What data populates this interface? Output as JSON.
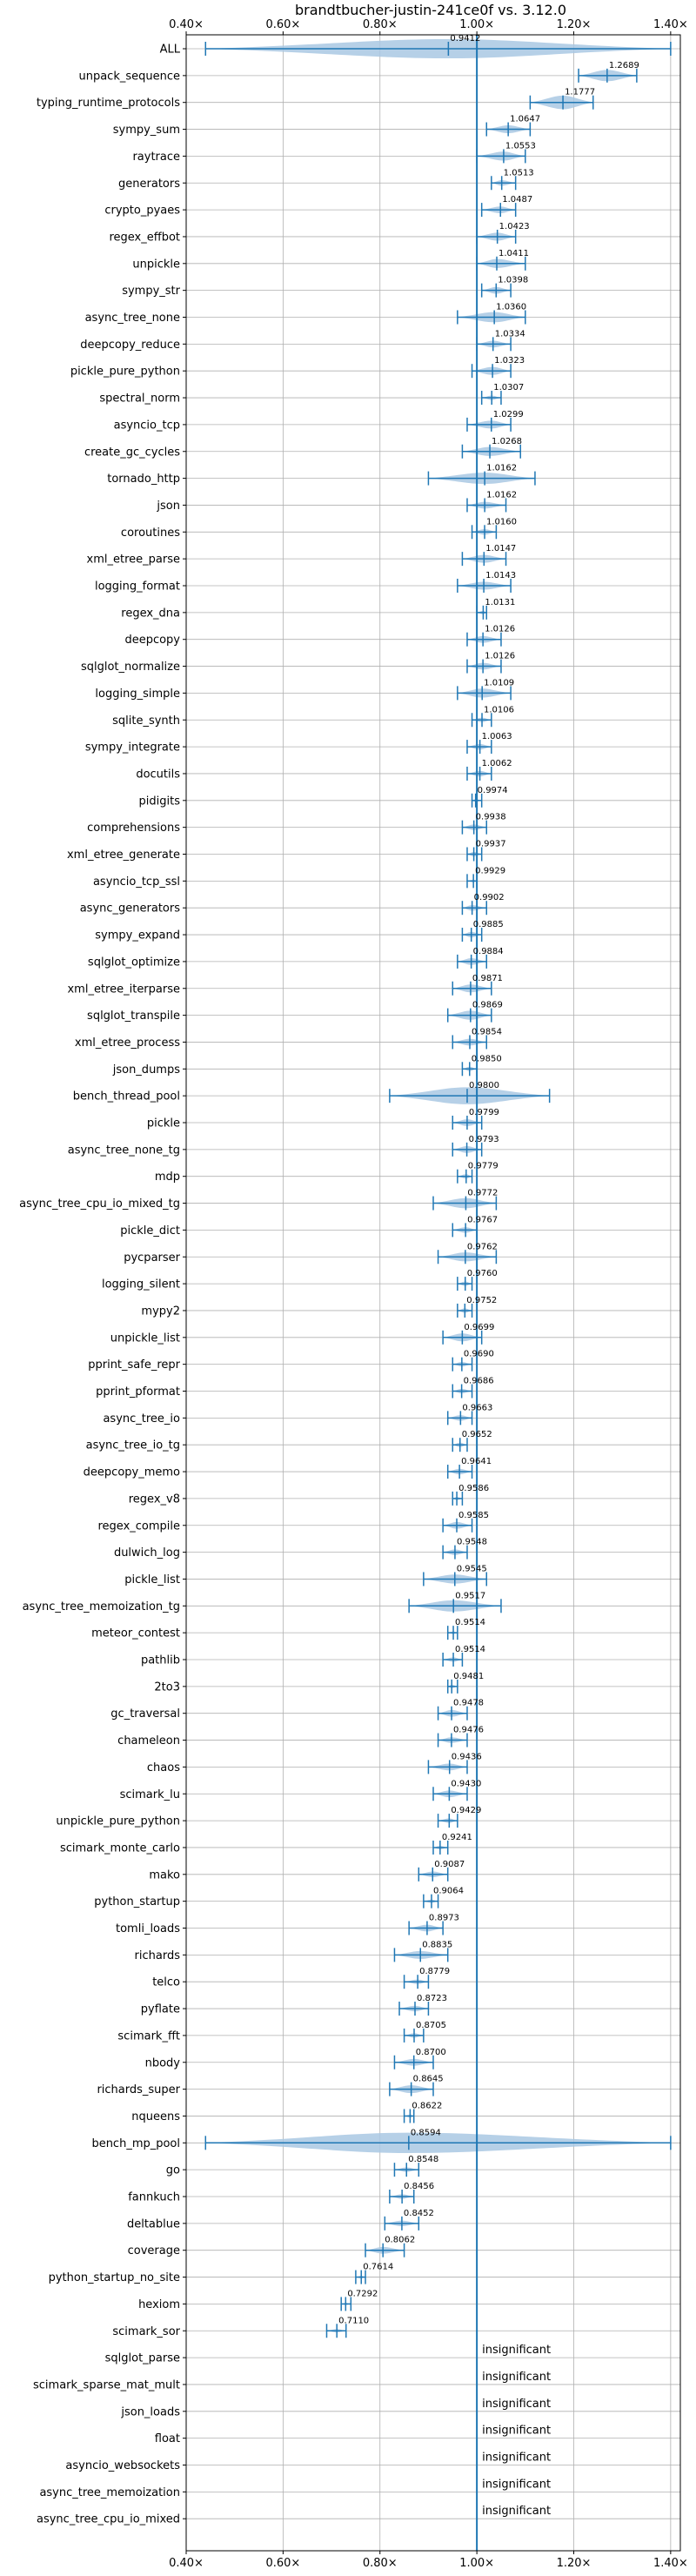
{
  "chart_data": {
    "type": "violin",
    "title": "brandtbucher-justin-241ce0f vs. 3.12.0",
    "xlim": [
      0.4,
      1.42
    ],
    "xticks": [
      0.4,
      0.6,
      0.8,
      1.0,
      1.2,
      1.4
    ],
    "xtick_labels": [
      "0.40×",
      "0.60×",
      "0.80×",
      "1.00×",
      "1.20×",
      "1.40×"
    ],
    "reference_line": 1.0,
    "grid": true,
    "colors": {
      "violin": "#a9c8e3",
      "line": "#1f77b4",
      "grid": "#b0b0b0"
    },
    "insignificant_label": "insignificant",
    "benchmarks": [
      {
        "name": "ALL",
        "value": 0.9412,
        "label": "0.9412",
        "min": 0.44,
        "max": 1.4,
        "width": 0.085
      },
      {
        "name": "unpack_sequence",
        "value": 1.2689,
        "label": "1.2689",
        "min": 1.21,
        "max": 1.33,
        "width": 0.05
      },
      {
        "name": "typing_runtime_protocols",
        "value": 1.1777,
        "label": "1.1777",
        "min": 1.11,
        "max": 1.24,
        "width": 0.06
      },
      {
        "name": "sympy_sum",
        "value": 1.0647,
        "label": "1.0647",
        "min": 1.02,
        "max": 1.11,
        "width": 0.035
      },
      {
        "name": "raytrace",
        "value": 1.0553,
        "label": "1.0553",
        "min": 1.0,
        "max": 1.1,
        "width": 0.04
      },
      {
        "name": "generators",
        "value": 1.0513,
        "label": "1.0513",
        "min": 1.03,
        "max": 1.08,
        "width": 0.025
      },
      {
        "name": "crypto_pyaes",
        "value": 1.0487,
        "label": "1.0487",
        "min": 1.01,
        "max": 1.08,
        "width": 0.03
      },
      {
        "name": "regex_effbot",
        "value": 1.0423,
        "label": "1.0423",
        "min": 1.0,
        "max": 1.08,
        "width": 0.035
      },
      {
        "name": "unpickle",
        "value": 1.0411,
        "label": "1.0411",
        "min": 1.0,
        "max": 1.1,
        "width": 0.04
      },
      {
        "name": "sympy_str",
        "value": 1.0398,
        "label": "1.0398",
        "min": 1.01,
        "max": 1.07,
        "width": 0.03
      },
      {
        "name": "async_tree_none",
        "value": 1.036,
        "label": "1.0360",
        "min": 0.96,
        "max": 1.1,
        "width": 0.045
      },
      {
        "name": "deepcopy_reduce",
        "value": 1.0334,
        "label": "1.0334",
        "min": 1.0,
        "max": 1.07,
        "width": 0.03
      },
      {
        "name": "pickle_pure_python",
        "value": 1.0323,
        "label": "1.0323",
        "min": 0.99,
        "max": 1.07,
        "width": 0.035
      },
      {
        "name": "spectral_norm",
        "value": 1.0307,
        "label": "1.0307",
        "min": 1.01,
        "max": 1.05,
        "width": 0.02
      },
      {
        "name": "asyncio_tcp",
        "value": 1.0299,
        "label": "1.0299",
        "min": 0.98,
        "max": 1.07,
        "width": 0.035
      },
      {
        "name": "create_gc_cycles",
        "value": 1.0268,
        "label": "1.0268",
        "min": 0.97,
        "max": 1.09,
        "width": 0.04
      },
      {
        "name": "tornado_http",
        "value": 1.0162,
        "label": "1.0162",
        "min": 0.9,
        "max": 1.12,
        "width": 0.05
      },
      {
        "name": "json",
        "value": 1.0162,
        "label": "1.0162",
        "min": 0.98,
        "max": 1.06,
        "width": 0.03
      },
      {
        "name": "coroutines",
        "value": 1.016,
        "label": "1.0160",
        "min": 0.99,
        "max": 1.04,
        "width": 0.025
      },
      {
        "name": "xml_etree_parse",
        "value": 1.0147,
        "label": "1.0147",
        "min": 0.97,
        "max": 1.06,
        "width": 0.035
      },
      {
        "name": "logging_format",
        "value": 1.0143,
        "label": "1.0143",
        "min": 0.96,
        "max": 1.07,
        "width": 0.035
      },
      {
        "name": "regex_dna",
        "value": 1.0131,
        "label": "1.0131",
        "min": 1.0,
        "max": 1.02,
        "width": 0.015
      },
      {
        "name": "deepcopy",
        "value": 1.0126,
        "label": "1.0126",
        "min": 0.98,
        "max": 1.05,
        "width": 0.03
      },
      {
        "name": "sqlglot_normalize",
        "value": 1.0126,
        "label": "1.0126",
        "min": 0.98,
        "max": 1.05,
        "width": 0.03
      },
      {
        "name": "logging_simple",
        "value": 1.0109,
        "label": "1.0109",
        "min": 0.96,
        "max": 1.07,
        "width": 0.04
      },
      {
        "name": "sqlite_synth",
        "value": 1.0106,
        "label": "1.0106",
        "min": 0.99,
        "max": 1.03,
        "width": 0.02
      },
      {
        "name": "sympy_integrate",
        "value": 1.0063,
        "label": "1.0063",
        "min": 0.98,
        "max": 1.03,
        "width": 0.025
      },
      {
        "name": "docutils",
        "value": 1.0062,
        "label": "1.0062",
        "min": 0.98,
        "max": 1.03,
        "width": 0.025
      },
      {
        "name": "pidigits",
        "value": 0.9974,
        "label": "0.9974",
        "min": 0.99,
        "max": 1.01,
        "width": 0.012
      },
      {
        "name": "comprehensions",
        "value": 0.9938,
        "label": "0.9938",
        "min": 0.97,
        "max": 1.02,
        "width": 0.025
      },
      {
        "name": "xml_etree_generate",
        "value": 0.9937,
        "label": "0.9937",
        "min": 0.98,
        "max": 1.01,
        "width": 0.02
      },
      {
        "name": "asyncio_tcp_ssl",
        "value": 0.9929,
        "label": "0.9929",
        "min": 0.98,
        "max": 1.0,
        "width": 0.012
      },
      {
        "name": "async_generators",
        "value": 0.9902,
        "label": "0.9902",
        "min": 0.97,
        "max": 1.02,
        "width": 0.025
      },
      {
        "name": "sympy_expand",
        "value": 0.9885,
        "label": "0.9885",
        "min": 0.97,
        "max": 1.01,
        "width": 0.025
      },
      {
        "name": "sqlglot_optimize",
        "value": 0.9884,
        "label": "0.9884",
        "min": 0.96,
        "max": 1.02,
        "width": 0.03
      },
      {
        "name": "xml_etree_iterparse",
        "value": 0.9871,
        "label": "0.9871",
        "min": 0.95,
        "max": 1.03,
        "width": 0.035
      },
      {
        "name": "sqlglot_transpile",
        "value": 0.9869,
        "label": "0.9869",
        "min": 0.94,
        "max": 1.03,
        "width": 0.04
      },
      {
        "name": "xml_etree_process",
        "value": 0.9854,
        "label": "0.9854",
        "min": 0.95,
        "max": 1.02,
        "width": 0.03
      },
      {
        "name": "json_dumps",
        "value": 0.985,
        "label": "0.9850",
        "min": 0.97,
        "max": 1.0,
        "width": 0.02
      },
      {
        "name": "bench_thread_pool",
        "value": 0.98,
        "label": "0.9800",
        "min": 0.82,
        "max": 1.15,
        "width": 0.075
      },
      {
        "name": "pickle",
        "value": 0.9799,
        "label": "0.9799",
        "min": 0.95,
        "max": 1.01,
        "width": 0.03
      },
      {
        "name": "async_tree_none_tg",
        "value": 0.9793,
        "label": "0.9793",
        "min": 0.95,
        "max": 1.01,
        "width": 0.03
      },
      {
        "name": "mdp",
        "value": 0.9779,
        "label": "0.9779",
        "min": 0.96,
        "max": 0.99,
        "width": 0.02
      },
      {
        "name": "async_tree_cpu_io_mixed_tg",
        "value": 0.9772,
        "label": "0.9772",
        "min": 0.91,
        "max": 1.04,
        "width": 0.045
      },
      {
        "name": "pickle_dict",
        "value": 0.9767,
        "label": "0.9767",
        "min": 0.95,
        "max": 1.0,
        "width": 0.025
      },
      {
        "name": "pycparser",
        "value": 0.9762,
        "label": "0.9762",
        "min": 0.92,
        "max": 1.04,
        "width": 0.04
      },
      {
        "name": "logging_silent",
        "value": 0.976,
        "label": "0.9760",
        "min": 0.96,
        "max": 0.99,
        "width": 0.02
      },
      {
        "name": "mypy2",
        "value": 0.9752,
        "label": "0.9752",
        "min": 0.96,
        "max": 0.99,
        "width": 0.02
      },
      {
        "name": "unpickle_list",
        "value": 0.9699,
        "label": "0.9699",
        "min": 0.93,
        "max": 1.01,
        "width": 0.035
      },
      {
        "name": "pprint_safe_repr",
        "value": 0.969,
        "label": "0.9690",
        "min": 0.95,
        "max": 0.99,
        "width": 0.02
      },
      {
        "name": "pprint_pformat",
        "value": 0.9686,
        "label": "0.9686",
        "min": 0.95,
        "max": 0.99,
        "width": 0.02
      },
      {
        "name": "async_tree_io",
        "value": 0.9663,
        "label": "0.9663",
        "min": 0.94,
        "max": 0.99,
        "width": 0.025
      },
      {
        "name": "async_tree_io_tg",
        "value": 0.9652,
        "label": "0.9652",
        "min": 0.95,
        "max": 0.98,
        "width": 0.02
      },
      {
        "name": "deepcopy_memo",
        "value": 0.9641,
        "label": "0.9641",
        "min": 0.94,
        "max": 0.99,
        "width": 0.025
      },
      {
        "name": "regex_v8",
        "value": 0.9586,
        "label": "0.9586",
        "min": 0.95,
        "max": 0.97,
        "width": 0.015
      },
      {
        "name": "regex_compile",
        "value": 0.9585,
        "label": "0.9585",
        "min": 0.93,
        "max": 0.99,
        "width": 0.03
      },
      {
        "name": "dulwich_log",
        "value": 0.9548,
        "label": "0.9548",
        "min": 0.93,
        "max": 0.98,
        "width": 0.025
      },
      {
        "name": "pickle_list",
        "value": 0.9545,
        "label": "0.9545",
        "min": 0.89,
        "max": 1.02,
        "width": 0.04
      },
      {
        "name": "async_tree_memoization_tg",
        "value": 0.9517,
        "label": "0.9517",
        "min": 0.86,
        "max": 1.05,
        "width": 0.05
      },
      {
        "name": "meteor_contest",
        "value": 0.9514,
        "label": "0.9514",
        "min": 0.94,
        "max": 0.96,
        "width": 0.012
      },
      {
        "name": "pathlib",
        "value": 0.9514,
        "label": "0.9514",
        "min": 0.93,
        "max": 0.97,
        "width": 0.02
      },
      {
        "name": "2to3",
        "value": 0.9481,
        "label": "0.9481",
        "min": 0.94,
        "max": 0.96,
        "width": 0.015
      },
      {
        "name": "gc_traversal",
        "value": 0.9478,
        "label": "0.9478",
        "min": 0.92,
        "max": 0.98,
        "width": 0.03
      },
      {
        "name": "chameleon",
        "value": 0.9476,
        "label": "0.9476",
        "min": 0.92,
        "max": 0.98,
        "width": 0.025
      },
      {
        "name": "chaos",
        "value": 0.9436,
        "label": "0.9436",
        "min": 0.9,
        "max": 0.98,
        "width": 0.03
      },
      {
        "name": "scimark_lu",
        "value": 0.943,
        "label": "0.9430",
        "min": 0.91,
        "max": 0.98,
        "width": 0.03
      },
      {
        "name": "unpickle_pure_python",
        "value": 0.9429,
        "label": "0.9429",
        "min": 0.92,
        "max": 0.96,
        "width": 0.02
      },
      {
        "name": "scimark_monte_carlo",
        "value": 0.9241,
        "label": "0.9241",
        "min": 0.91,
        "max": 0.94,
        "width": 0.015
      },
      {
        "name": "mako",
        "value": 0.9087,
        "label": "0.9087",
        "min": 0.88,
        "max": 0.94,
        "width": 0.025
      },
      {
        "name": "python_startup",
        "value": 0.9064,
        "label": "0.9064",
        "min": 0.89,
        "max": 0.92,
        "width": 0.015
      },
      {
        "name": "tomli_loads",
        "value": 0.8973,
        "label": "0.8973",
        "min": 0.86,
        "max": 0.93,
        "width": 0.03
      },
      {
        "name": "richards",
        "value": 0.8835,
        "label": "0.8835",
        "min": 0.83,
        "max": 0.94,
        "width": 0.035
      },
      {
        "name": "telco",
        "value": 0.8779,
        "label": "0.8779",
        "min": 0.85,
        "max": 0.9,
        "width": 0.02
      },
      {
        "name": "pyflate",
        "value": 0.8723,
        "label": "0.8723",
        "min": 0.84,
        "max": 0.9,
        "width": 0.025
      },
      {
        "name": "scimark_fft",
        "value": 0.8705,
        "label": "0.8705",
        "min": 0.85,
        "max": 0.89,
        "width": 0.02
      },
      {
        "name": "nbody",
        "value": 0.87,
        "label": "0.8700",
        "min": 0.83,
        "max": 0.91,
        "width": 0.03
      },
      {
        "name": "richards_super",
        "value": 0.8645,
        "label": "0.8645",
        "min": 0.82,
        "max": 0.91,
        "width": 0.035
      },
      {
        "name": "nqueens",
        "value": 0.8622,
        "label": "0.8622",
        "min": 0.85,
        "max": 0.87,
        "width": 0.012
      },
      {
        "name": "bench_mp_pool",
        "value": 0.8594,
        "label": "0.8594",
        "min": 0.44,
        "max": 1.4,
        "width": 0.09
      },
      {
        "name": "go",
        "value": 0.8548,
        "label": "0.8548",
        "min": 0.83,
        "max": 0.88,
        "width": 0.02
      },
      {
        "name": "fannkuch",
        "value": 0.8456,
        "label": "0.8456",
        "min": 0.82,
        "max": 0.87,
        "width": 0.02
      },
      {
        "name": "deltablue",
        "value": 0.8452,
        "label": "0.8452",
        "min": 0.81,
        "max": 0.88,
        "width": 0.025
      },
      {
        "name": "coverage",
        "value": 0.8062,
        "label": "0.8062",
        "min": 0.77,
        "max": 0.85,
        "width": 0.03
      },
      {
        "name": "python_startup_no_site",
        "value": 0.7614,
        "label": "0.7614",
        "min": 0.75,
        "max": 0.77,
        "width": 0.012
      },
      {
        "name": "hexiom",
        "value": 0.7292,
        "label": "0.7292",
        "min": 0.72,
        "max": 0.74,
        "width": 0.01
      },
      {
        "name": "scimark_sor",
        "value": 0.711,
        "label": "0.7110",
        "min": 0.69,
        "max": 0.73,
        "width": 0.015
      },
      {
        "name": "sqlglot_parse",
        "value": null,
        "label": "insignificant"
      },
      {
        "name": "scimark_sparse_mat_mult",
        "value": null,
        "label": "insignificant"
      },
      {
        "name": "json_loads",
        "value": null,
        "label": "insignificant"
      },
      {
        "name": "float",
        "value": null,
        "label": "insignificant"
      },
      {
        "name": "asyncio_websockets",
        "value": null,
        "label": "insignificant"
      },
      {
        "name": "async_tree_memoization",
        "value": null,
        "label": "insignificant"
      },
      {
        "name": "async_tree_cpu_io_mixed",
        "value": null,
        "label": "insignificant"
      }
    ]
  }
}
